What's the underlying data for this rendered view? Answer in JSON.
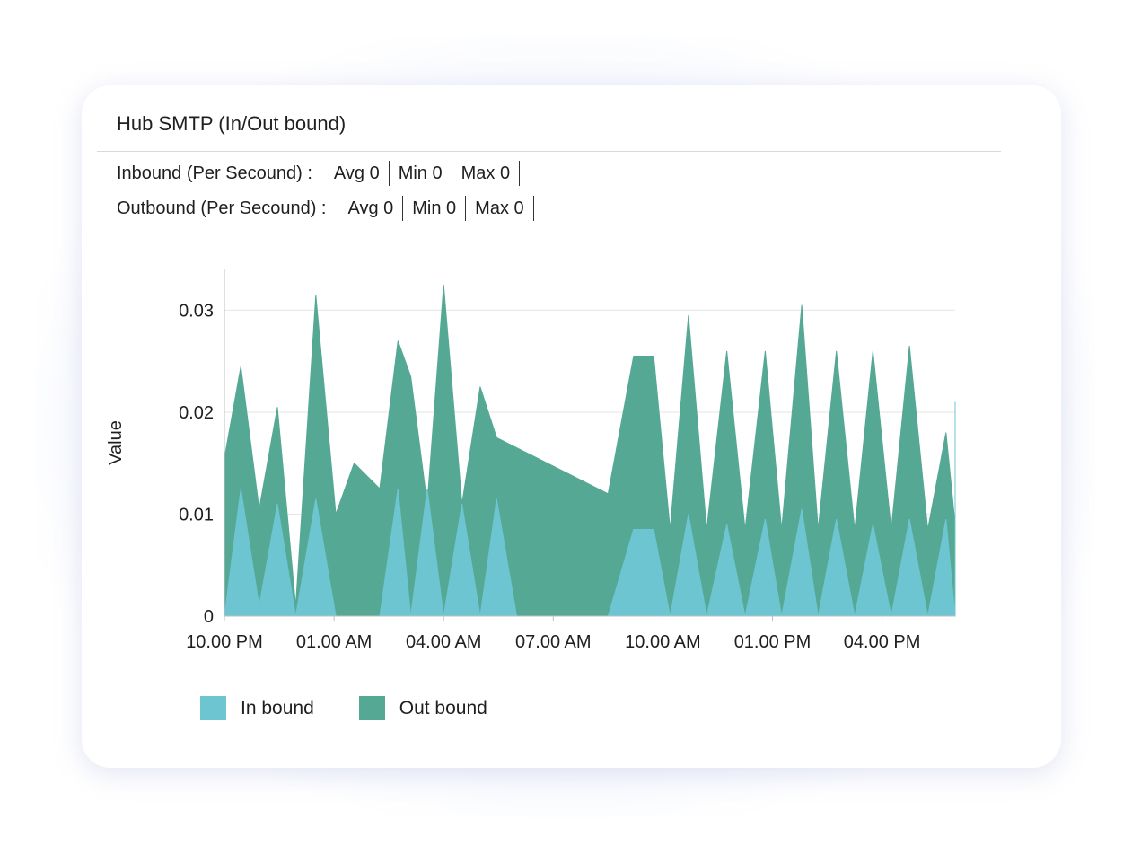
{
  "panel": {
    "title": "Hub SMTP (In/Out bound)"
  },
  "stats": {
    "inbound": {
      "label": "Inbound (Per Secound) :",
      "avg": "Avg 0",
      "min": "Min 0",
      "max": "Max 0"
    },
    "outbound": {
      "label": "Outbound (Per Secound) :",
      "avg": "Avg 0",
      "min": "Min 0",
      "max": "Max 0"
    }
  },
  "colors": {
    "inbound": "#6cc5d0",
    "outbound": "#55a994",
    "grid": "#e6e6e6",
    "axis": "#bfbfbf"
  },
  "chart_data": {
    "type": "area",
    "ylabel": "Value",
    "xlabel": "",
    "ylim": [
      0,
      0.034
    ],
    "yticks": [
      0,
      0.01,
      0.02,
      0.03
    ],
    "ytick_labels": [
      "0",
      "0.01",
      "0.02",
      "0.03"
    ],
    "xlim": [
      0,
      20
    ],
    "xticks": [
      0,
      3,
      6,
      9,
      12,
      15,
      18
    ],
    "xtick_labels": [
      "10.00 PM",
      "01.00 AM",
      "04.00 AM",
      "07.00 AM",
      "10.00 AM",
      "01.00 PM",
      "04.00 PM"
    ],
    "grid": true,
    "legend_position": "bottom-left",
    "series": [
      {
        "name": "In bound",
        "color": "#6cc5d0",
        "points": [
          [
            0,
            0
          ],
          [
            0.45,
            0.0125
          ],
          [
            0.95,
            0.001
          ],
          [
            1.45,
            0.011
          ],
          [
            1.95,
            0
          ],
          [
            2.5,
            0.0115
          ],
          [
            3.05,
            0
          ],
          [
            4.25,
            0
          ],
          [
            4.75,
            0.0125
          ],
          [
            5.1,
            0
          ],
          [
            5.55,
            0.0125
          ],
          [
            6.0,
            0
          ],
          [
            6.5,
            0.011
          ],
          [
            7.0,
            0
          ],
          [
            7.45,
            0.0115
          ],
          [
            8.0,
            0
          ],
          [
            10.5,
            0
          ],
          [
            11.2,
            0.0085
          ],
          [
            11.75,
            0.0085
          ],
          [
            12.2,
            0
          ],
          [
            12.7,
            0.01
          ],
          [
            13.2,
            0
          ],
          [
            13.75,
            0.009
          ],
          [
            14.25,
            0
          ],
          [
            14.8,
            0.0095
          ],
          [
            15.25,
            0
          ],
          [
            15.8,
            0.0105
          ],
          [
            16.25,
            0
          ],
          [
            16.75,
            0.0095
          ],
          [
            17.25,
            0
          ],
          [
            17.75,
            0.009
          ],
          [
            18.25,
            0
          ],
          [
            18.75,
            0.0095
          ],
          [
            19.25,
            0
          ],
          [
            19.75,
            0.0095
          ],
          [
            20.25,
            0
          ],
          [
            20.95,
            0.021
          ]
        ]
      },
      {
        "name": "Out bound",
        "color": "#55a994",
        "points": [
          [
            0,
            0.0155
          ],
          [
            0.45,
            0.0245
          ],
          [
            0.95,
            0.0105
          ],
          [
            1.45,
            0.0205
          ],
          [
            1.95,
            0.001
          ],
          [
            2.5,
            0.0315
          ],
          [
            3.05,
            0.01
          ],
          [
            3.55,
            0.015
          ],
          [
            4.25,
            0.0125
          ],
          [
            4.75,
            0.027
          ],
          [
            5.1,
            0.0235
          ],
          [
            5.55,
            0.011
          ],
          [
            6.0,
            0.0325
          ],
          [
            6.5,
            0.011
          ],
          [
            7.0,
            0.0225
          ],
          [
            7.45,
            0.0175
          ],
          [
            10.5,
            0.012
          ],
          [
            11.2,
            0.0255
          ],
          [
            11.75,
            0.0255
          ],
          [
            12.2,
            0.0085
          ],
          [
            12.7,
            0.0295
          ],
          [
            13.2,
            0.0085
          ],
          [
            13.75,
            0.026
          ],
          [
            14.25,
            0.0085
          ],
          [
            14.8,
            0.026
          ],
          [
            15.25,
            0.0085
          ],
          [
            15.8,
            0.0305
          ],
          [
            16.25,
            0.0085
          ],
          [
            16.75,
            0.026
          ],
          [
            17.25,
            0.0085
          ],
          [
            17.75,
            0.026
          ],
          [
            18.25,
            0.0085
          ],
          [
            18.75,
            0.0265
          ],
          [
            19.25,
            0.0085
          ],
          [
            19.75,
            0.018
          ],
          [
            20.25,
            0.009
          ],
          [
            20.95,
            0.0205
          ]
        ]
      }
    ]
  }
}
